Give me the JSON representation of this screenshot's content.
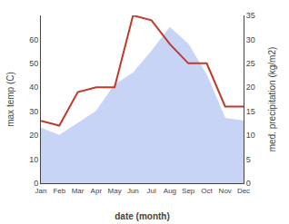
{
  "chart_data": {
    "type": "combo",
    "categories": [
      "Jan",
      "Feb",
      "Mar",
      "Apr",
      "May",
      "Jun",
      "Jul",
      "Aug",
      "Sep",
      "Oct",
      "Nov",
      "Dec"
    ],
    "series": [
      {
        "type": "area",
        "color": "#c8d4f5",
        "values": [
          23,
          20,
          25,
          30,
          41,
          46,
          55,
          65,
          58,
          45,
          27,
          26
        ]
      },
      {
        "type": "line",
        "color": "#c0392b",
        "axis": "y2",
        "values": [
          13,
          12,
          19,
          20,
          20,
          35,
          34,
          29,
          25,
          25,
          16,
          16
        ]
      }
    ],
    "xlabel": "date (month)",
    "ylabel": "max temp (C)",
    "y2label": "med. precipitation (kg/m2)",
    "ylim": [
      0,
      70
    ],
    "yticks": [
      0,
      10,
      20,
      30,
      40,
      50,
      60
    ],
    "y2lim": [
      0,
      35
    ],
    "y2ticks": [
      0,
      5,
      10,
      15,
      20,
      25,
      30,
      35
    ],
    "grid": false
  }
}
